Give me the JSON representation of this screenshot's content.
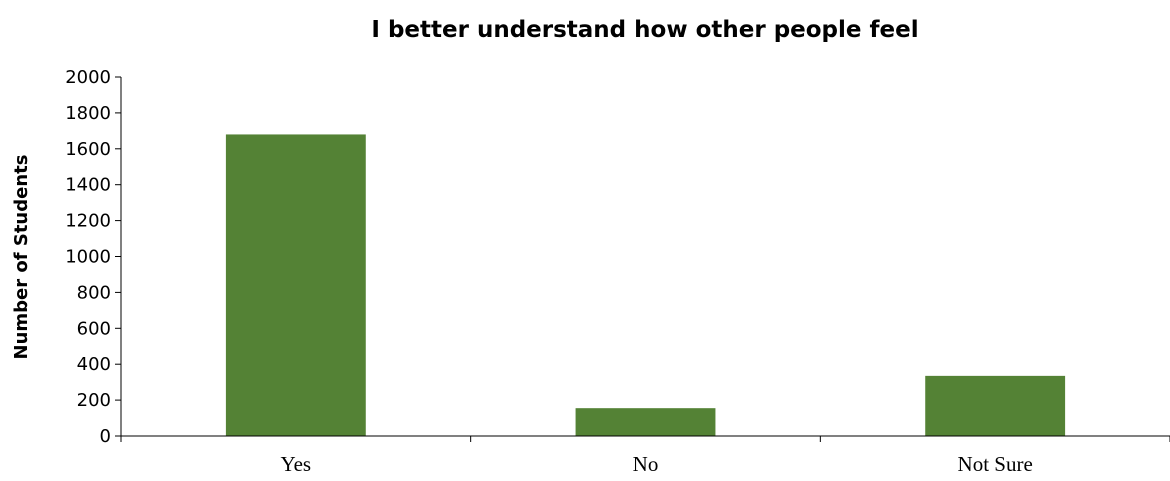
{
  "chart_data": {
    "type": "bar",
    "title": "I better understand how other people feel",
    "xlabel": "",
    "ylabel": "Number of  Students",
    "categories": [
      "Yes",
      "No",
      "Not Sure"
    ],
    "values": [
      1680,
      155,
      335
    ],
    "ylim": [
      0,
      2000
    ],
    "yticks": [
      "0",
      "200",
      "400",
      "600",
      "800",
      "1000",
      "1200",
      "1400",
      "1600",
      "1800",
      "2000"
    ],
    "grid": false,
    "legend": "none",
    "bar_color": "#548235"
  }
}
